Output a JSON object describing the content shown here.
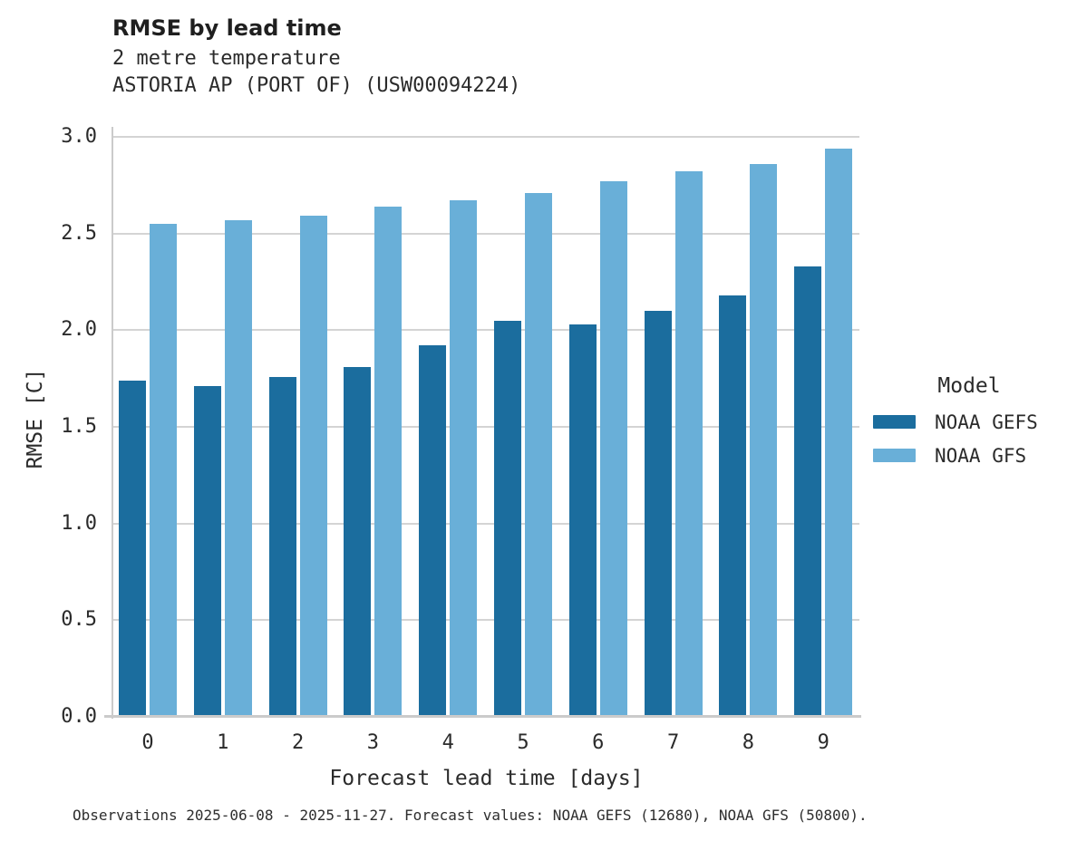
{
  "header": {
    "title": "RMSE by lead time",
    "subtitle": "2 metre temperature",
    "station": "ASTORIA AP (PORT OF) (USW00094224)"
  },
  "chart_data": {
    "type": "bar",
    "title": "RMSE by lead time",
    "subtitle": "2 metre temperature",
    "station": "ASTORIA AP (PORT OF) (USW00094224)",
    "categories": [
      "0",
      "1",
      "2",
      "3",
      "4",
      "5",
      "6",
      "7",
      "8",
      "9"
    ],
    "series": [
      {
        "name": "NOAA GEFS",
        "color": "#1b6d9e",
        "values": [
          1.74,
          1.71,
          1.76,
          1.81,
          1.92,
          2.05,
          2.03,
          2.1,
          2.18,
          2.33
        ]
      },
      {
        "name": "NOAA GFS",
        "color": "#69afd8",
        "values": [
          2.55,
          2.57,
          2.59,
          2.64,
          2.67,
          2.71,
          2.77,
          2.82,
          2.86,
          2.94
        ]
      }
    ],
    "xlabel": "Forecast lead time [days]",
    "ylabel": "RMSE [C]",
    "ylim": [
      0.0,
      3.0
    ],
    "yticks": [
      "0.0",
      "0.5",
      "1.0",
      "1.5",
      "2.0",
      "2.5",
      "3.0"
    ],
    "grid": "horizontal",
    "legend_position": "right"
  },
  "legend": {
    "title": "Model"
  },
  "caption": "Observations 2025-06-08 - 2025-11-27. Forecast values: NOAA GEFS (12680), NOAA GFS (50800)."
}
